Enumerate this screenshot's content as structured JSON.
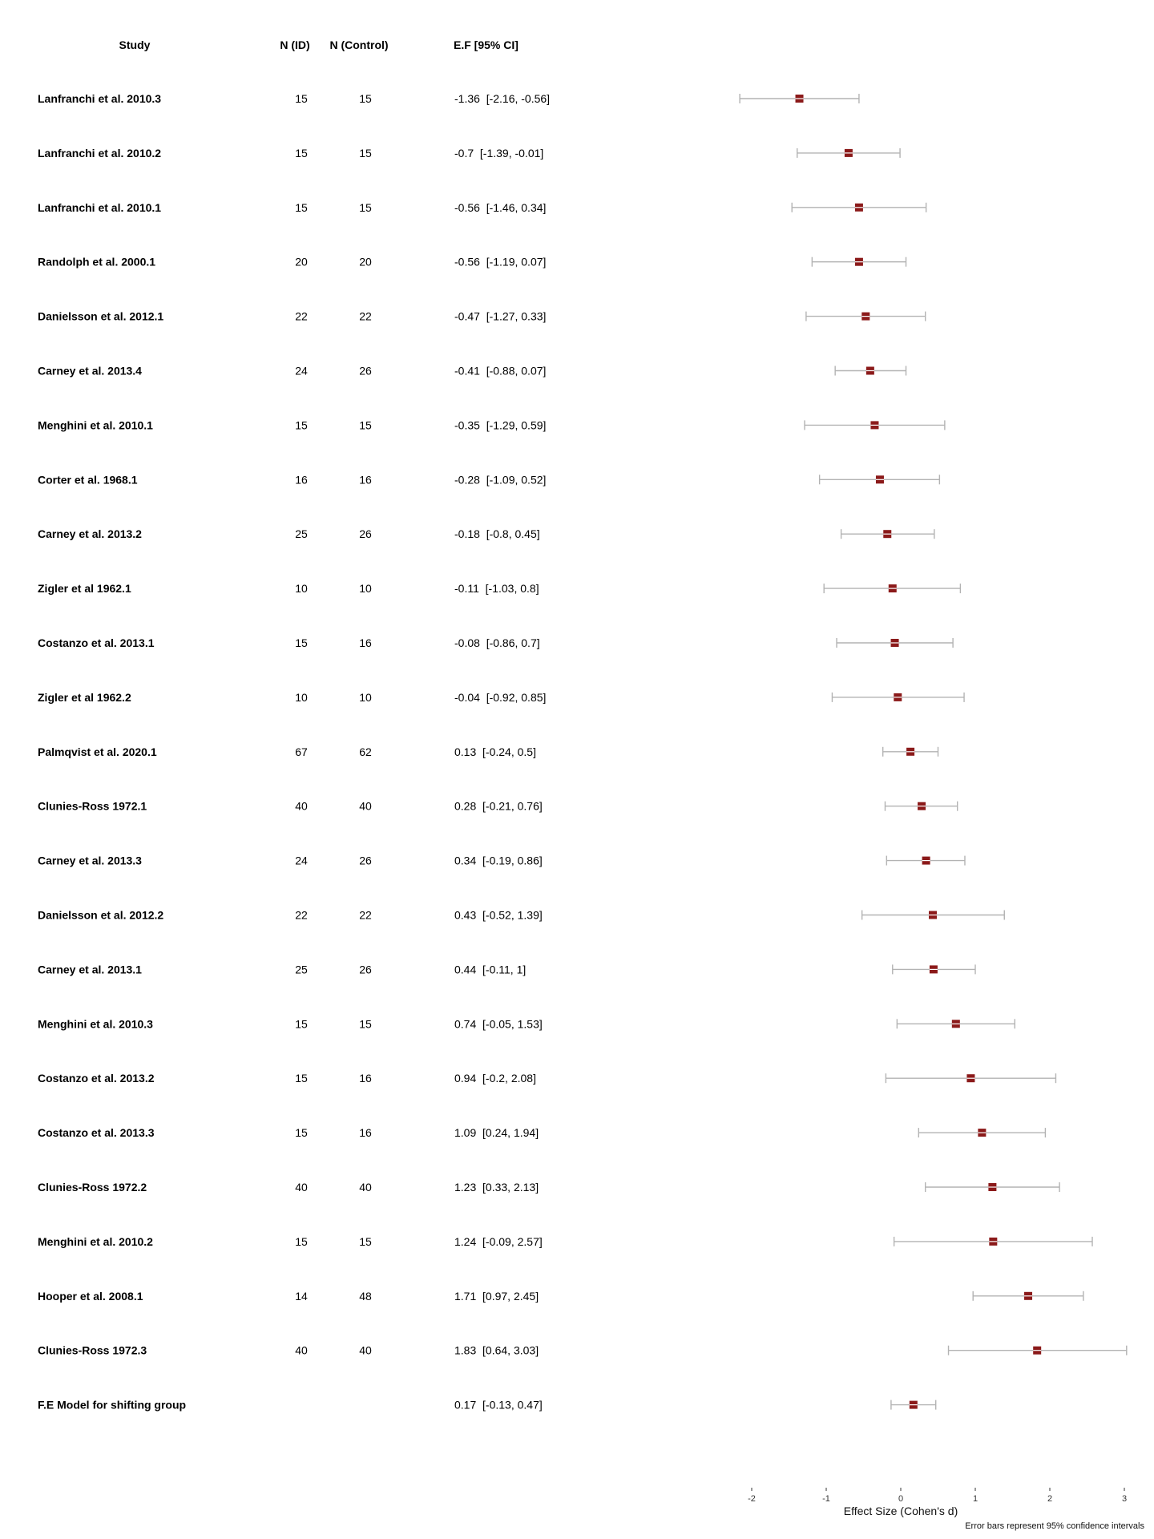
{
  "chart_data": {
    "type": "forest",
    "columns": [
      "Study",
      "N (ID)",
      "N (Control)",
      "E.F [95% CI]"
    ],
    "rows": [
      {
        "study": "Lanfranchi et al. 2010.3",
        "n_id": "15",
        "n_control": "15",
        "ef_text": "-1.36  [-2.16, -0.56]",
        "ef": -1.36,
        "ci_low": -2.16,
        "ci_high": -0.56
      },
      {
        "study": "Lanfranchi et al. 2010.2",
        "n_id": "15",
        "n_control": "15",
        "ef_text": "-0.7  [-1.39, -0.01]",
        "ef": -0.7,
        "ci_low": -1.39,
        "ci_high": -0.01
      },
      {
        "study": "Lanfranchi et al. 2010.1",
        "n_id": "15",
        "n_control": "15",
        "ef_text": "-0.56  [-1.46, 0.34]",
        "ef": -0.56,
        "ci_low": -1.46,
        "ci_high": 0.34
      },
      {
        "study": "Randolph et al. 2000.1",
        "n_id": "20",
        "n_control": "20",
        "ef_text": "-0.56  [-1.19, 0.07]",
        "ef": -0.56,
        "ci_low": -1.19,
        "ci_high": 0.07
      },
      {
        "study": "Danielsson et al. 2012.1",
        "n_id": "22",
        "n_control": "22",
        "ef_text": "-0.47  [-1.27, 0.33]",
        "ef": -0.47,
        "ci_low": -1.27,
        "ci_high": 0.33
      },
      {
        "study": "Carney et al. 2013.4",
        "n_id": "24",
        "n_control": "26",
        "ef_text": "-0.41  [-0.88, 0.07]",
        "ef": -0.41,
        "ci_low": -0.88,
        "ci_high": 0.07
      },
      {
        "study": "Menghini et al. 2010.1",
        "n_id": "15",
        "n_control": "15",
        "ef_text": "-0.35  [-1.29, 0.59]",
        "ef": -0.35,
        "ci_low": -1.29,
        "ci_high": 0.59
      },
      {
        "study": "Corter et al. 1968.1",
        "n_id": "16",
        "n_control": "16",
        "ef_text": "-0.28  [-1.09, 0.52]",
        "ef": -0.28,
        "ci_low": -1.09,
        "ci_high": 0.52
      },
      {
        "study": "Carney et al. 2013.2",
        "n_id": "25",
        "n_control": "26",
        "ef_text": "-0.18  [-0.8, 0.45]",
        "ef": -0.18,
        "ci_low": -0.8,
        "ci_high": 0.45
      },
      {
        "study": "Zigler et al 1962.1",
        "n_id": "10",
        "n_control": "10",
        "ef_text": "-0.11  [-1.03, 0.8]",
        "ef": -0.11,
        "ci_low": -1.03,
        "ci_high": 0.8
      },
      {
        "study": "Costanzo et al. 2013.1",
        "n_id": "15",
        "n_control": "16",
        "ef_text": "-0.08  [-0.86, 0.7]",
        "ef": -0.08,
        "ci_low": -0.86,
        "ci_high": 0.7
      },
      {
        "study": "Zigler et al 1962.2",
        "n_id": "10",
        "n_control": "10",
        "ef_text": "-0.04  [-0.92, 0.85]",
        "ef": -0.04,
        "ci_low": -0.92,
        "ci_high": 0.85
      },
      {
        "study": "Palmqvist et al. 2020.1",
        "n_id": "67",
        "n_control": "62",
        "ef_text": "0.13  [-0.24, 0.5]",
        "ef": 0.13,
        "ci_low": -0.24,
        "ci_high": 0.5
      },
      {
        "study": "Clunies-Ross 1972.1",
        "n_id": "40",
        "n_control": "40",
        "ef_text": "0.28  [-0.21, 0.76]",
        "ef": 0.28,
        "ci_low": -0.21,
        "ci_high": 0.76
      },
      {
        "study": "Carney et al. 2013.3",
        "n_id": "24",
        "n_control": "26",
        "ef_text": "0.34  [-0.19, 0.86]",
        "ef": 0.34,
        "ci_low": -0.19,
        "ci_high": 0.86
      },
      {
        "study": "Danielsson et al. 2012.2",
        "n_id": "22",
        "n_control": "22",
        "ef_text": "0.43  [-0.52, 1.39]",
        "ef": 0.43,
        "ci_low": -0.52,
        "ci_high": 1.39
      },
      {
        "study": "Carney et al. 2013.1",
        "n_id": "25",
        "n_control": "26",
        "ef_text": "0.44  [-0.11, 1]",
        "ef": 0.44,
        "ci_low": -0.11,
        "ci_high": 1
      },
      {
        "study": "Menghini et al. 2010.3",
        "n_id": "15",
        "n_control": "15",
        "ef_text": "0.74  [-0.05, 1.53]",
        "ef": 0.74,
        "ci_low": -0.05,
        "ci_high": 1.53
      },
      {
        "study": "Costanzo et al. 2013.2",
        "n_id": "15",
        "n_control": "16",
        "ef_text": "0.94  [-0.2, 2.08]",
        "ef": 0.94,
        "ci_low": -0.2,
        "ci_high": 2.08
      },
      {
        "study": "Costanzo et al. 2013.3",
        "n_id": "15",
        "n_control": "16",
        "ef_text": "1.09  [0.24, 1.94]",
        "ef": 1.09,
        "ci_low": 0.24,
        "ci_high": 1.94
      },
      {
        "study": "Clunies-Ross 1972.2",
        "n_id": "40",
        "n_control": "40",
        "ef_text": "1.23  [0.33, 2.13]",
        "ef": 1.23,
        "ci_low": 0.33,
        "ci_high": 2.13
      },
      {
        "study": "Menghini et al. 2010.2",
        "n_id": "15",
        "n_control": "15",
        "ef_text": "1.24  [-0.09, 2.57]",
        "ef": 1.24,
        "ci_low": -0.09,
        "ci_high": 2.57
      },
      {
        "study": "Hooper et al. 2008.1",
        "n_id": "14",
        "n_control": "48",
        "ef_text": "1.71  [0.97, 2.45]",
        "ef": 1.71,
        "ci_low": 0.97,
        "ci_high": 2.45
      },
      {
        "study": "Clunies-Ross 1972.3",
        "n_id": "40",
        "n_control": "40",
        "ef_text": "1.83  [0.64, 3.03]",
        "ef": 1.83,
        "ci_low": 0.64,
        "ci_high": 3.03
      },
      {
        "study": "F.E Model for shifting group",
        "n_id": "",
        "n_control": "",
        "ef_text": "0.17  [-0.13, 0.47]",
        "ef": 0.17,
        "ci_low": -0.13,
        "ci_high": 0.47
      }
    ],
    "x_ticks": [
      -2,
      -1,
      0,
      1,
      2,
      3
    ],
    "x_tick_labels": [
      "-2",
      "-1",
      "0",
      "1",
      "2",
      "3"
    ],
    "xlim": [
      -2,
      3
    ],
    "xlabel": "Effect Size (Cohen's d)",
    "note": "Error bars represent 95% confidence intervals",
    "point_color": "#8b1a1a",
    "ci_color": "#b3b3b3",
    "grid": false
  }
}
